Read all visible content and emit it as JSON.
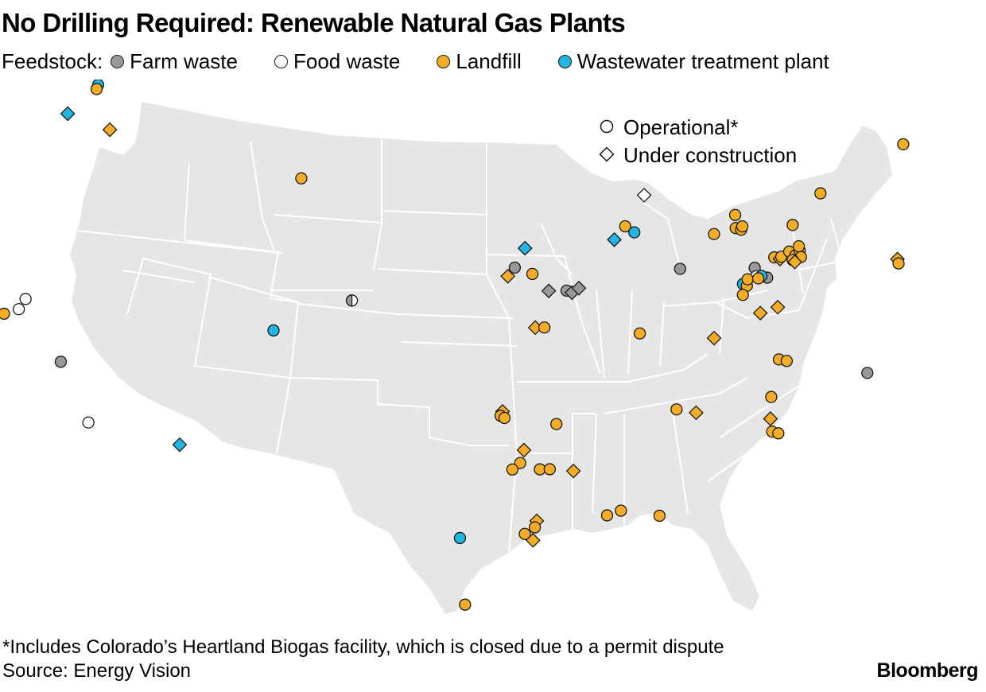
{
  "title": "No Drilling Required: Renewable Natural Gas Plants",
  "legend": {
    "prefix": "Feedstock:",
    "items": [
      {
        "key": "farm",
        "label": "Farm waste",
        "color": "#999999"
      },
      {
        "key": "food",
        "label": "Food waste",
        "color": "#ffffff"
      },
      {
        "key": "landfill",
        "label": "Landfill",
        "color": "#f2ac25"
      },
      {
        "key": "wastewater",
        "label": "Wastewater treatment plant",
        "color": "#22b5e1"
      }
    ]
  },
  "status_legend": {
    "operational": "Operational*",
    "under_construction": "Under construction"
  },
  "map": {
    "land_color": "#e6e6e6",
    "border_color": "#ffffff",
    "marker_stroke": "#1a1a1a"
  },
  "plants": [
    {
      "f": "wastewater",
      "s": "op",
      "lon": -122.4,
      "lat": 48.9
    },
    {
      "f": "landfill",
      "s": "op",
      "lon": -122.4,
      "lat": 48.7
    },
    {
      "f": "wastewater",
      "s": "uc",
      "lon": -123.6,
      "lat": 47.4
    },
    {
      "f": "landfill",
      "s": "uc",
      "lon": -120.8,
      "lat": 47.0
    },
    {
      "f": "landfill",
      "s": "op",
      "lon": -108.7,
      "lat": 45.8
    },
    {
      "f": "food",
      "s": "op",
      "lon": -122.6,
      "lat": 38.9
    },
    {
      "f": "food",
      "s": "op",
      "lon": -122.8,
      "lat": 38.4
    },
    {
      "f": "food",
      "s": "op",
      "lon": -124.2,
      "lat": 38.2
    },
    {
      "f": "wastewater",
      "s": "uc",
      "lon": -124.3,
      "lat": 38.5
    },
    {
      "f": "wastewater",
      "s": "op",
      "lon": -124.2,
      "lat": 37.95
    },
    {
      "f": "landfill",
      "s": "op",
      "lon": -123.5,
      "lat": 38.1
    },
    {
      "f": "farm",
      "s": "op",
      "lon": -119.9,
      "lat": 36.3
    },
    {
      "f": "food",
      "s": "op",
      "lon": -117.8,
      "lat": 33.7
    },
    {
      "f": "wastewater",
      "s": "uc",
      "lon": -113.0,
      "lat": 33.1
    },
    {
      "f": "wastewater",
      "s": "op",
      "lon": -109.0,
      "lat": 38.7
    },
    {
      "f": "farm_food",
      "s": "op",
      "lon": -104.9,
      "lat": 40.3
    },
    {
      "f": "wastewater",
      "s": "uc",
      "lon": -95.2,
      "lat": 42.9
    },
    {
      "f": "farm",
      "s": "op",
      "lon": -95.8,
      "lat": 42.0
    },
    {
      "f": "landfill",
      "s": "uc",
      "lon": -96.2,
      "lat": 41.6
    },
    {
      "f": "landfill",
      "s": "op",
      "lon": -94.8,
      "lat": 41.7
    },
    {
      "f": "farm",
      "s": "uc",
      "lon": -93.9,
      "lat": 40.9
    },
    {
      "f": "farm",
      "s": "op",
      "lon": -92.9,
      "lat": 40.9
    },
    {
      "f": "farm",
      "s": "uc",
      "lon": -92.6,
      "lat": 40.8
    },
    {
      "f": "farm",
      "s": "uc",
      "lon": -92.2,
      "lat": 41.0
    },
    {
      "f": "landfill",
      "s": "uc",
      "lon": -94.7,
      "lat": 39.2
    },
    {
      "f": "landfill",
      "s": "op",
      "lon": -94.2,
      "lat": 39.2
    },
    {
      "f": "landfill",
      "s": "op",
      "lon": -89.3,
      "lat": 43.8
    },
    {
      "f": "wastewater",
      "s": "op",
      "lon": -88.8,
      "lat": 43.5
    },
    {
      "f": "wastewater",
      "s": "uc",
      "lon": -90.0,
      "lat": 43.2
    },
    {
      "f": "food",
      "s": "uc",
      "lon": -88.0,
      "lat": 45.2
    },
    {
      "f": "farm",
      "s": "op",
      "lon": -86.4,
      "lat": 41.7
    },
    {
      "f": "landfill",
      "s": "op",
      "lon": -89.0,
      "lat": 38.8
    },
    {
      "f": "landfill",
      "s": "op",
      "lon": -84.2,
      "lat": 43.2
    },
    {
      "f": "landfill",
      "s": "op",
      "lon": -82.8,
      "lat": 44.0
    },
    {
      "f": "landfill",
      "s": "op",
      "lon": -82.9,
      "lat": 43.4
    },
    {
      "f": "landfill",
      "s": "op",
      "lon": -82.6,
      "lat": 43.3
    },
    {
      "f": "landfill",
      "s": "op",
      "lon": -82.5,
      "lat": 43.45
    },
    {
      "f": "landfill",
      "s": "op",
      "lon": -79.6,
      "lat": 43.3
    },
    {
      "f": "farm",
      "s": "op",
      "lon": -82.2,
      "lat": 41.5
    },
    {
      "f": "food",
      "s": "op",
      "lon": -82.2,
      "lat": 41.1
    },
    {
      "f": "farm",
      "s": "op",
      "lon": -81.6,
      "lat": 41.0
    },
    {
      "f": "wastewater",
      "s": "op",
      "lon": -83.0,
      "lat": 40.8
    },
    {
      "f": "wastewater",
      "s": "op",
      "lon": -81.9,
      "lat": 41.1
    },
    {
      "f": "landfill",
      "s": "op",
      "lon": -82.8,
      "lat": 40.7
    },
    {
      "f": "landfill",
      "s": "op",
      "lon": -82.7,
      "lat": 41.0
    },
    {
      "f": "landfill",
      "s": "op",
      "lon": -82.1,
      "lat": 41.0
    },
    {
      "f": "landfill",
      "s": "op",
      "lon": -83.1,
      "lat": 40.3
    },
    {
      "f": "landfill",
      "s": "op",
      "lon": -81.0,
      "lat": 41.9
    },
    {
      "f": "landfill",
      "s": "uc",
      "lon": -80.7,
      "lat": 41.8
    },
    {
      "f": "landfill",
      "s": "op",
      "lon": -80.6,
      "lat": 41.9
    },
    {
      "f": "landfill",
      "s": "op",
      "lon": -80.1,
      "lat": 42.1
    },
    {
      "f": "landfill",
      "s": "op",
      "lon": -79.8,
      "lat": 41.9
    },
    {
      "f": "landfill",
      "s": "op",
      "lon": -79.5,
      "lat": 42.1
    },
    {
      "f": "landfill",
      "s": "op",
      "lon": -79.5,
      "lat": 41.8
    },
    {
      "f": "landfill",
      "s": "op",
      "lon": -79.5,
      "lat": 42.3
    },
    {
      "f": "landfill",
      "s": "op",
      "lon": -80.0,
      "lat": 41.7
    },
    {
      "f": "landfill",
      "s": "uc",
      "lon": -79.9,
      "lat": 41.6
    },
    {
      "f": "landfill",
      "s": "op",
      "lon": -77.6,
      "lat": 44.6
    },
    {
      "f": "landfill",
      "s": "op",
      "lon": -72.0,
      "lat": 46.3
    },
    {
      "f": "landfill",
      "s": "uc",
      "lon": -74.2,
      "lat": 41.2
    },
    {
      "f": "landfill",
      "s": "op",
      "lon": -74.2,
      "lat": 41.0
    },
    {
      "f": "landfill",
      "s": "uc",
      "lon": -82.3,
      "lat": 39.4
    },
    {
      "f": "landfill",
      "s": "uc",
      "lon": -81.3,
      "lat": 39.6
    },
    {
      "f": "landfill",
      "s": "uc",
      "lon": -85.0,
      "lat": 38.4
    },
    {
      "f": "landfill",
      "s": "op",
      "lon": -81.7,
      "lat": 37.2
    },
    {
      "f": "landfill",
      "s": "op",
      "lon": -81.3,
      "lat": 37.1
    },
    {
      "f": "farm",
      "s": "op",
      "lon": -77.2,
      "lat": 36.2
    },
    {
      "f": "landfill",
      "s": "op",
      "lon": -82.4,
      "lat": 35.5
    },
    {
      "f": "landfill",
      "s": "uc",
      "lon": -82.6,
      "lat": 34.5
    },
    {
      "f": "landfill",
      "s": "op",
      "lon": -82.6,
      "lat": 33.9
    },
    {
      "f": "landfill",
      "s": "op",
      "lon": -82.3,
      "lat": 33.8
    },
    {
      "f": "landfill",
      "s": "op",
      "lon": -87.4,
      "lat": 35.2
    },
    {
      "f": "landfill",
      "s": "uc",
      "lon": -86.4,
      "lat": 35.0
    },
    {
      "f": "landfill",
      "s": "op",
      "lon": -93.7,
      "lat": 34.7
    },
    {
      "f": "landfill",
      "s": "uc",
      "lon": -96.5,
      "lat": 35.3
    },
    {
      "f": "landfill",
      "s": "op",
      "lon": -96.6,
      "lat": 35.1
    },
    {
      "f": "landfill",
      "s": "op",
      "lon": -96.4,
      "lat": 35.0
    },
    {
      "f": "landfill",
      "s": "uc",
      "lon": -95.4,
      "lat": 33.5
    },
    {
      "f": "landfill",
      "s": "op",
      "lon": -95.6,
      "lat": 32.9
    },
    {
      "f": "landfill",
      "s": "op",
      "lon": -96.0,
      "lat": 32.6
    },
    {
      "f": "landfill",
      "s": "op",
      "lon": -94.6,
      "lat": 32.6
    },
    {
      "f": "landfill",
      "s": "op",
      "lon": -94.1,
      "lat": 32.6
    },
    {
      "f": "landfill",
      "s": "uc",
      "lon": -92.9,
      "lat": 32.5
    },
    {
      "f": "landfill",
      "s": "op",
      "lon": -91.3,
      "lat": 30.4
    },
    {
      "f": "landfill",
      "s": "op",
      "lon": -90.6,
      "lat": 30.6
    },
    {
      "f": "landfill",
      "s": "op",
      "lon": -88.7,
      "lat": 30.3
    },
    {
      "f": "landfill",
      "s": "uc",
      "lon": -94.8,
      "lat": 30.2
    },
    {
      "f": "landfill",
      "s": "op",
      "lon": -94.9,
      "lat": 29.9
    },
    {
      "f": "landfill",
      "s": "op",
      "lon": -95.4,
      "lat": 29.6
    },
    {
      "f": "landfill",
      "s": "uc",
      "lon": -95.0,
      "lat": 29.3
    },
    {
      "f": "wastewater",
      "s": "op",
      "lon": -98.6,
      "lat": 29.4
    },
    {
      "f": "landfill",
      "s": "op",
      "lon": -98.3,
      "lat": 26.3
    }
  ]
}
